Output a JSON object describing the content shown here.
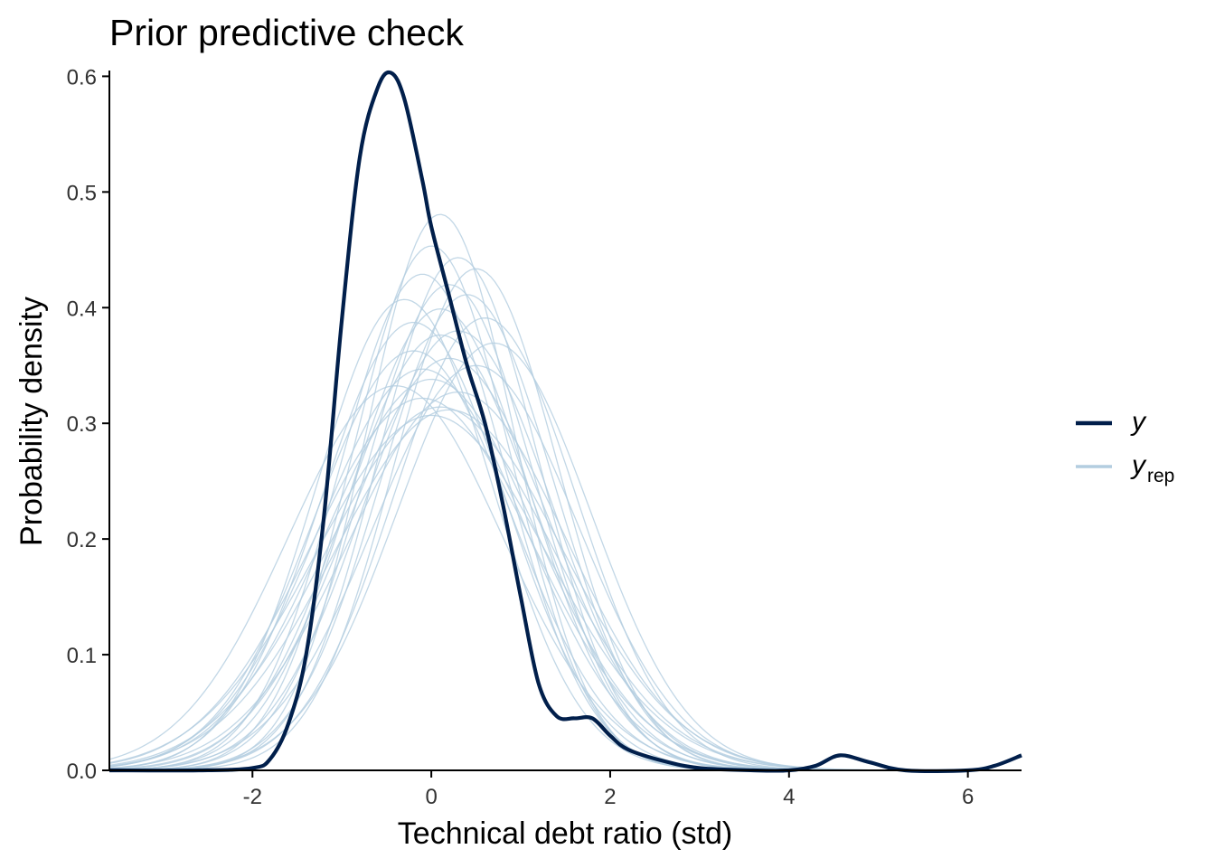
{
  "chart_data": {
    "type": "line",
    "title": "Prior predictive check",
    "xlabel": "Technical debt ratio (std)",
    "ylabel": "Probability density",
    "xlim": [
      -3.6,
      6.6
    ],
    "ylim": [
      0,
      0.605
    ],
    "x_ticks": [
      -2,
      0,
      2,
      4,
      6
    ],
    "x_tick_labels": [
      "-2",
      "0",
      "2",
      "4",
      "6"
    ],
    "y_ticks": [
      0.0,
      0.1,
      0.2,
      0.3,
      0.4,
      0.5,
      0.6
    ],
    "y_tick_labels": [
      "0.0",
      "0.1",
      "0.2",
      "0.3",
      "0.4",
      "0.5",
      "0.6"
    ],
    "grid": false,
    "legend": {
      "placement": "right",
      "entries": [
        {
          "label": "y",
          "subscript": "",
          "color": "#011f4b"
        },
        {
          "label": "y",
          "subscript": "rep",
          "color": "#b3cde0"
        }
      ]
    },
    "series": [
      {
        "name": "y",
        "color": "#011f4b",
        "x": [
          -3.6,
          -2.6,
          -2.0,
          -1.8,
          -1.6,
          -1.4,
          -1.2,
          -1.0,
          -0.8,
          -0.6,
          -0.45,
          -0.3,
          -0.1,
          0.0,
          0.2,
          0.4,
          0.6,
          0.8,
          1.0,
          1.2,
          1.4,
          1.6,
          1.8,
          2.0,
          2.2,
          2.6,
          3.0,
          3.6,
          4.0,
          4.3,
          4.57,
          4.9,
          5.3,
          6.0,
          6.3,
          6.6
        ],
        "y": [
          0.0,
          0.0,
          0.002,
          0.01,
          0.04,
          0.1,
          0.22,
          0.39,
          0.53,
          0.59,
          0.603,
          0.58,
          0.51,
          0.47,
          0.41,
          0.35,
          0.3,
          0.23,
          0.15,
          0.075,
          0.047,
          0.045,
          0.045,
          0.03,
          0.018,
          0.008,
          0.002,
          0.0,
          0.0,
          0.004,
          0.013,
          0.007,
          0.0,
          0.0,
          0.004,
          0.013
        ]
      }
    ],
    "yrep": {
      "name": "y_rep",
      "color": "#b3cde0",
      "count": 25,
      "draws": [
        {
          "mu": 0.1,
          "sd": 0.83
        },
        {
          "mu": -0.1,
          "sd": 0.93
        },
        {
          "mu": 0.3,
          "sd": 1.05
        },
        {
          "mu": 0.0,
          "sd": 1.18
        },
        {
          "mu": 0.2,
          "sd": 0.95
        },
        {
          "mu": -0.2,
          "sd": 1.1
        },
        {
          "mu": 0.5,
          "sd": 0.92
        },
        {
          "mu": 0.1,
          "sd": 1.27
        },
        {
          "mu": -0.3,
          "sd": 0.98
        },
        {
          "mu": 0.6,
          "sd": 1.02
        },
        {
          "mu": 0.0,
          "sd": 0.88
        },
        {
          "mu": 0.3,
          "sd": 1.22
        },
        {
          "mu": -0.1,
          "sd": 1.15
        },
        {
          "mu": 0.4,
          "sd": 0.97
        },
        {
          "mu": 0.2,
          "sd": 1.12
        },
        {
          "mu": -0.4,
          "sd": 1.2
        },
        {
          "mu": 0.1,
          "sd": 1.0
        },
        {
          "mu": 0.7,
          "sd": 1.08
        },
        {
          "mu": 0.0,
          "sd": 1.3
        },
        {
          "mu": 0.3,
          "sd": 0.9
        },
        {
          "mu": -0.2,
          "sd": 1.03
        },
        {
          "mu": 0.5,
          "sd": 1.14
        },
        {
          "mu": 0.1,
          "sd": 1.06
        },
        {
          "mu": -0.1,
          "sd": 1.24
        },
        {
          "mu": 0.2,
          "sd": 1.28
        }
      ]
    }
  }
}
